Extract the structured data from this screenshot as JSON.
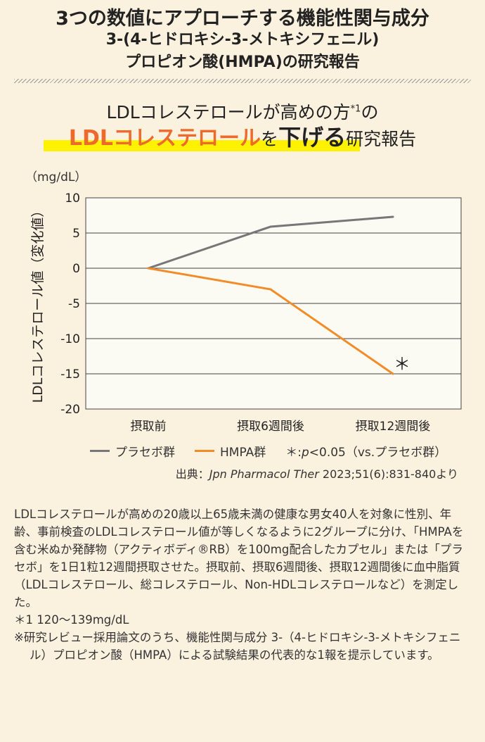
{
  "header": {
    "line1": "3つの数値にアプローチする機能性関与成分",
    "line2": "3-(4-ヒドロキシ-3-メトキシフェニル)",
    "line3": "プロピオン酸(HMPA)の研究報告"
  },
  "subtitle": {
    "line1": "LDLコレステロールが高めの方",
    "line1_sup": "*1",
    "line1_end": "の",
    "orange": "LDLコレステロール",
    "wo": "を",
    "bold": "下げる",
    "rest": "研究報告"
  },
  "colors": {
    "placebo": "#777777",
    "hmpa": "#f28c28",
    "accent": "#ec6a2c",
    "highlight": "#fff200",
    "plot_bg": "#fbfaf3"
  },
  "chart_data": {
    "type": "line",
    "unit": "（mg/dL）",
    "ylabel": "LDLコレステロール値（変化値）",
    "ylim": [
      -20,
      10
    ],
    "yticks": [
      10,
      5,
      0,
      -5,
      -10,
      -15,
      -20
    ],
    "categories": [
      "摂取前",
      "摂取6週間後",
      "摂取12週間後"
    ],
    "series": [
      {
        "name": "プラセボ群",
        "values": [
          0,
          5.9,
          7.3
        ],
        "color": "#777777"
      },
      {
        "name": "HMPA群",
        "values": [
          0,
          -3.0,
          -15.0
        ],
        "color": "#f28c28"
      }
    ],
    "annotation": "＊",
    "grid": "horizontal",
    "significance": "＊:p<0.05（vs.プラセボ群）"
  },
  "legend": {
    "placebo": "プラセボ群",
    "hmpa": "HMPA群",
    "sig_star": "＊:",
    "sig_p": "p",
    "sig_rest": "<0.05（vs.プラセボ群）"
  },
  "source": {
    "prefix": "出典：",
    "journal": "Jpn Pharmacol Ther",
    "rest": " 2023;51(6):831-840より"
  },
  "description": {
    "p1": "LDLコレステロールが高めの20歳以上65歳未満の健康な男女40人を対象に性別、年齢、事前検査のLDLコレステロール値が等しくなるように2グループに分け、「HMPAを含む米ぬか発酵物（アクティボディ®RB）を100mg配合したカプセル」または「プラセボ」を1日1粒12週間摂取させた。摂取前、摂取6週間後、摂取12週間後に血中脂質（LDLコレステロール、総コレステロール、Non-HDLコレステロールなど）を測定した。",
    "note1": "＊1 120〜139mg/dL",
    "note2": "※研究レビュー採用論文のうち、機能性関与成分 3-（4-ヒドロキシ-3-メトキシフェニル）プロピオン酸（HMPA）による試験結果の代表的な1報を提示しています。"
  }
}
